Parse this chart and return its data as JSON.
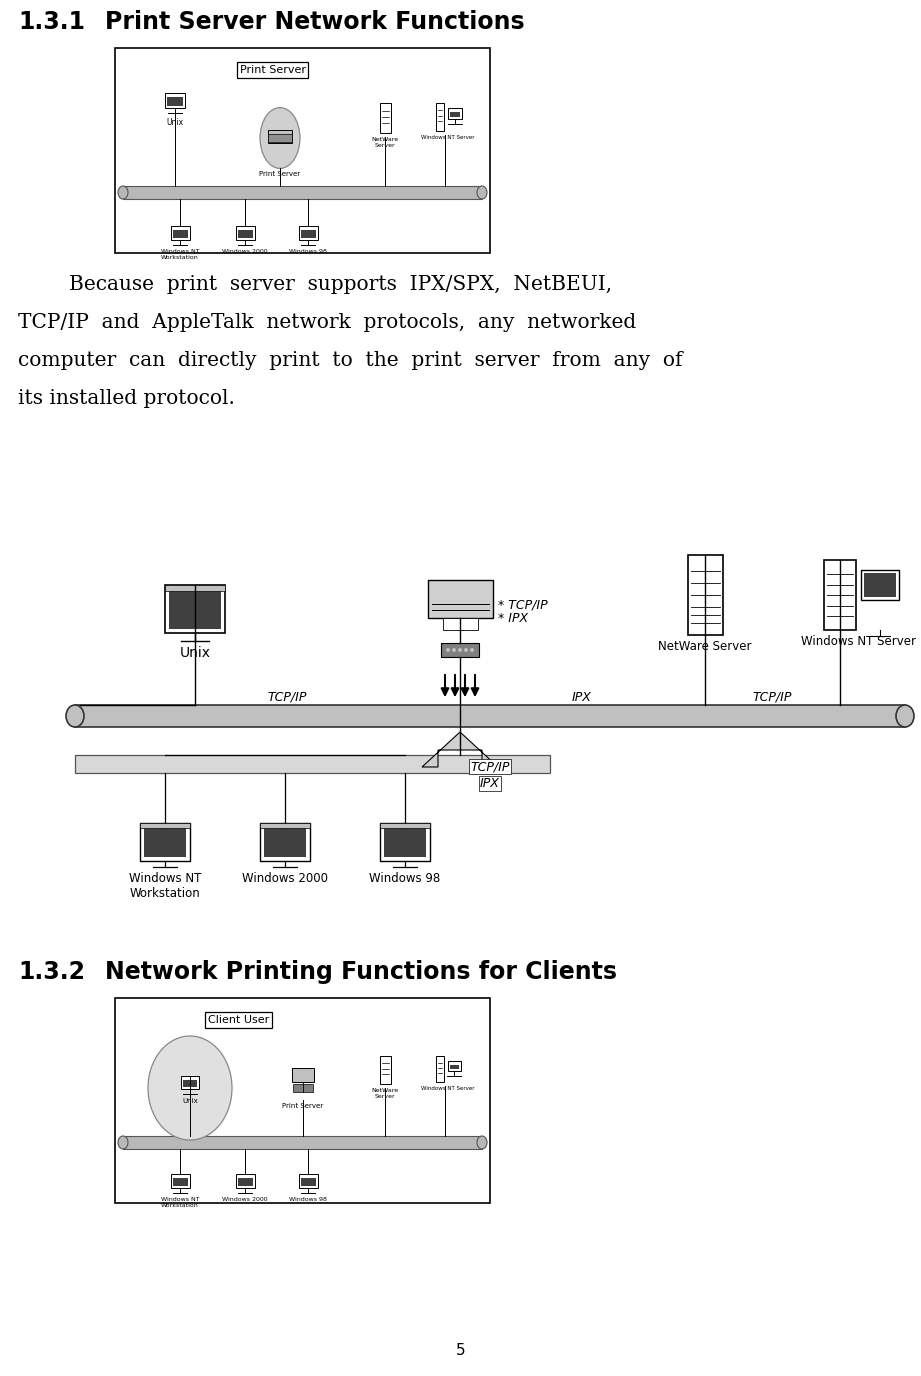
{
  "page_number": "5",
  "section1_number": "1.3.1",
  "section1_name": "Print Server Network Functions",
  "section2_number": "1.3.2",
  "section2_name": "Network Printing Functions for Clients",
  "body_text_lines": [
    "        Because  print  server  supports  IPX/SPX,  NetBEUI,",
    "TCP/IP  and  AppleTalk  network  protocols,  any  networked",
    "computer  can  directly  print  to  the  print  server  from  any  of",
    "its installed protocol."
  ],
  "diagram1_label": "Print Server",
  "diagram2_label": "Client User",
  "background_color": "#ffffff",
  "border_color": "#000000",
  "text_color": "#000000",
  "gray_bar": "#b0b0b0",
  "light_gray": "#d8d8d8",
  "diag_border": "#000000"
}
